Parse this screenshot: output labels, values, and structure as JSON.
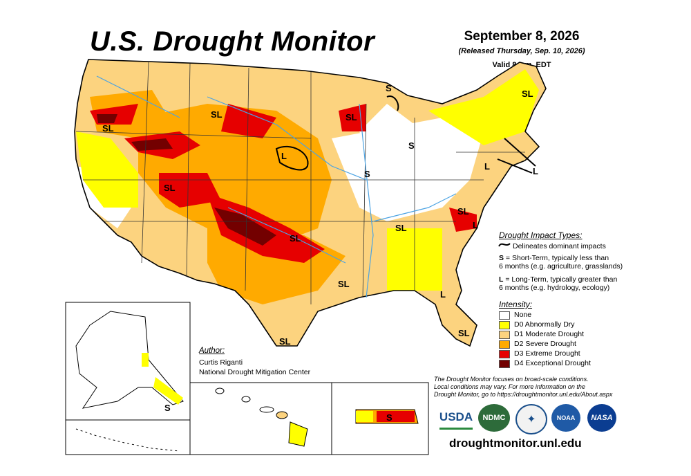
{
  "header": {
    "title": "U.S. Drought Monitor",
    "date": "September 8, 2026",
    "released": "(Released Thursday, Sep. 10, 2026)",
    "valid": "Valid 8 a.m. EDT"
  },
  "impact_types": {
    "heading": "Drought Impact Types:",
    "delineates": "Delineates dominant impacts",
    "short_term_key": "S",
    "short_term_text": " = Short-Term, typically less than",
    "short_term_text2": "6 months (e.g. agriculture, grasslands)",
    "long_term_key": "L",
    "long_term_text": " = Long-Term, typically greater than",
    "long_term_text2": "6 months (e.g. hydrology, ecology)"
  },
  "intensity": {
    "heading": "Intensity:",
    "levels": [
      {
        "label": "None",
        "color": "#ffffff"
      },
      {
        "label": "D0 Abnormally Dry",
        "color": "#ffff00"
      },
      {
        "label": "D1 Moderate Drought",
        "color": "#fcd37f"
      },
      {
        "label": "D2 Severe Drought",
        "color": "#ffaa00"
      },
      {
        "label": "D3 Extreme Drought",
        "color": "#e60000"
      },
      {
        "label": "D4 Exceptional Drought",
        "color": "#730000"
      }
    ]
  },
  "author": {
    "heading": "Author:",
    "name": "Curtis Riganti",
    "org": "National Drought Mitigation Center"
  },
  "note": {
    "line1": "The Drought Monitor focuses on broad-scale conditions.",
    "line2": "Local conditions may vary. For more information on the",
    "line3": "Drought Monitor, go to https://droughtmonitor.unl.edu/About.aspx"
  },
  "logos": {
    "usda": "USDA",
    "ndmc": "NDMC",
    "noaa": "NOAA",
    "nasa": "NASA"
  },
  "website": "droughtmonitor.unl.edu",
  "map_labels": {
    "sl_oregon": "SL",
    "sl_montana": "SL",
    "sl_utah": "SL",
    "sl_wisconsin": "SL",
    "s_upper_mi": "S",
    "s_lower_mi": "S",
    "s_illinois": "S",
    "l_nebraska": "L",
    "sl_oklahoma": "SL",
    "sl_tennessee": "SL",
    "sl_louisiana": "SL",
    "sl_texas": "SL",
    "sl_virginia": "SL",
    "l_nc": "L",
    "l_georgia": "L",
    "sl_florida": "SL",
    "sl_maine": "SL",
    "l_ny": "L",
    "l_ne": "L",
    "s_alaska": "S",
    "s_puerto_rico": "S"
  }
}
